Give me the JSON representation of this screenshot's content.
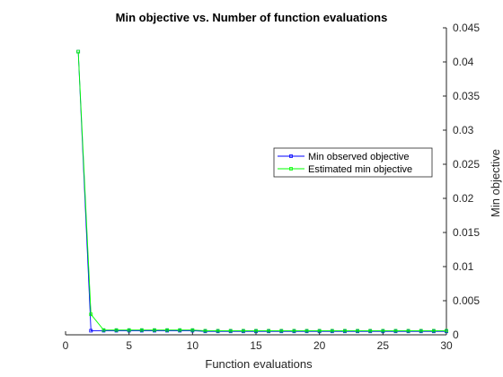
{
  "chart_data": {
    "type": "line",
    "title": "Min objective vs. Number of function evaluations",
    "xlabel": "Function evaluations",
    "ylabel": "Min objective",
    "xlim": [
      0,
      30
    ],
    "ylim": [
      0,
      0.045
    ],
    "xticks": [
      0,
      5,
      10,
      15,
      20,
      25,
      30
    ],
    "yticks": [
      0,
      0.005,
      0.01,
      0.015,
      0.02,
      0.025,
      0.03,
      0.035,
      0.04,
      0.045
    ],
    "yaxis_location": "right",
    "grid": false,
    "legend": {
      "placement": "right"
    },
    "series": [
      {
        "name": "Min observed objective",
        "color": "#0000ff",
        "x": [
          1,
          2,
          3,
          4,
          5,
          6,
          7,
          8,
          9,
          10,
          11,
          12,
          13,
          14,
          15,
          16,
          17,
          18,
          19,
          20,
          21,
          22,
          23,
          24,
          25,
          26,
          27,
          28,
          29,
          30
        ],
        "y": [
          0.0415,
          0.0006,
          0.0006,
          0.0006,
          0.0006,
          0.0006,
          0.0006,
          0.0006,
          0.0006,
          0.0006,
          0.0005,
          0.0005,
          0.0005,
          0.0005,
          0.0005,
          0.0005,
          0.0005,
          0.0005,
          0.0005,
          0.0005,
          0.0005,
          0.0005,
          0.0005,
          0.0005,
          0.0005,
          0.0005,
          0.0005,
          0.0005,
          0.0005,
          0.0005
        ]
      },
      {
        "name": "Estimated min objective",
        "color": "#00ff00",
        "x": [
          1,
          2,
          3,
          4,
          5,
          6,
          7,
          8,
          9,
          10,
          11,
          12,
          13,
          14,
          15,
          16,
          17,
          18,
          19,
          20,
          21,
          22,
          23,
          24,
          25,
          26,
          27,
          28,
          29,
          30
        ],
        "y": [
          0.0415,
          0.003,
          0.0007,
          0.0007,
          0.0007,
          0.0007,
          0.0007,
          0.0007,
          0.0007,
          0.0007,
          0.0006,
          0.0006,
          0.0006,
          0.0006,
          0.0006,
          0.0006,
          0.0006,
          0.0006,
          0.0006,
          0.0006,
          0.0006,
          0.0006,
          0.0006,
          0.0006,
          0.0006,
          0.0006,
          0.0006,
          0.0006,
          0.0006,
          0.0006
        ]
      }
    ]
  }
}
